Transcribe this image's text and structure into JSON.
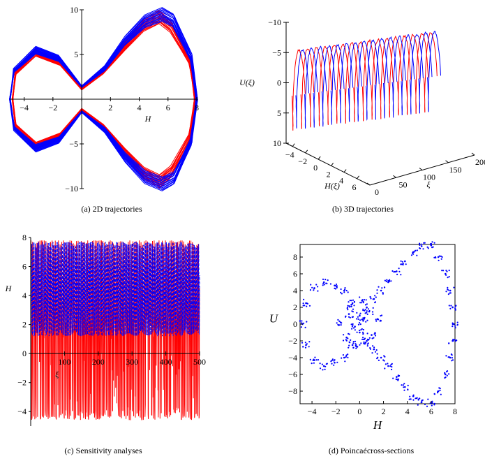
{
  "colors": {
    "series_a": "#ff0000",
    "series_b": "#0000ff",
    "axis": "#000000"
  },
  "chart_data": [
    {
      "id": "a",
      "type": "line",
      "caption": "(a)  2D trajectories",
      "xlabel": "H",
      "ylabel": "",
      "xlim": [
        -5,
        8
      ],
      "ylim": [
        -10,
        10
      ],
      "x_ticks": [
        -4,
        -2,
        0,
        2,
        4,
        6,
        8
      ],
      "x_tick_labels": [
        "−4",
        "−2",
        "",
        "2",
        "4",
        "6",
        "8"
      ],
      "y_ticks": [
        -10,
        -5,
        0,
        5,
        10
      ],
      "y_tick_labels": [
        "−10",
        "−5",
        "",
        "5",
        "10"
      ],
      "axes_style": "centered",
      "grid": false,
      "series": [
        {
          "color": "#ff0000",
          "values": [
            [
              7.9,
              0
            ],
            [
              7.5,
              4.5
            ],
            [
              6.2,
              8.5
            ],
            [
              5.4,
              9.6
            ],
            [
              4.3,
              8.6
            ],
            [
              3,
              6.2
            ],
            [
              1.5,
              3.2
            ],
            [
              0,
              1.2
            ],
            [
              -1.5,
              4.4
            ],
            [
              -3.2,
              5.6
            ],
            [
              -4.6,
              3.2
            ],
            [
              -4.8,
              0
            ],
            [
              -4.6,
              -3.2
            ],
            [
              -3.2,
              -5.6
            ],
            [
              -1.5,
              -4.4
            ],
            [
              0,
              -1.2
            ],
            [
              1.5,
              -3.2
            ],
            [
              3,
              -6.2
            ],
            [
              4.3,
              -8.6
            ],
            [
              5.4,
              -9.6
            ],
            [
              6.2,
              -8.5
            ],
            [
              7.5,
              -4.5
            ],
            [
              7.9,
              0
            ]
          ]
        },
        {
          "color": "#0000ff",
          "values": [
            [
              8,
              0
            ],
            [
              7.6,
              5
            ],
            [
              6.4,
              9.2
            ],
            [
              5.6,
              9.9
            ],
            [
              4.4,
              9.1
            ],
            [
              3,
              6.8
            ],
            [
              1.6,
              3.6
            ],
            [
              0,
              1.5
            ],
            [
              -1.6,
              4.9
            ],
            [
              -3.2,
              5.9
            ],
            [
              -4.7,
              3.5
            ],
            [
              -5,
              0
            ],
            [
              -4.7,
              -3.5
            ],
            [
              -3.2,
              -5.9
            ],
            [
              -1.6,
              -4.9
            ],
            [
              0,
              -1.5
            ],
            [
              1.6,
              -3.6
            ],
            [
              3,
              -6.8
            ],
            [
              4.4,
              -9.1
            ],
            [
              5.6,
              -9.9
            ],
            [
              6.4,
              -9.2
            ],
            [
              7.6,
              -5
            ],
            [
              8,
              0
            ]
          ]
        }
      ]
    },
    {
      "id": "b",
      "type": "line",
      "caption": "(b)  3D trajectories",
      "xlabel": "ξ",
      "ylabel": "H(ξ)",
      "zlabel": "U(ξ)",
      "xlim": [
        0,
        200
      ],
      "ylim": [
        -5,
        8
      ],
      "zlim": [
        -10,
        10
      ],
      "x_ticks": [
        0,
        50,
        100,
        150,
        200
      ],
      "y_ticks": [
        -4,
        -2,
        0,
        2,
        4,
        6
      ],
      "y_tick_labels": [
        "−4",
        "−2",
        "0",
        "2",
        "4",
        "6"
      ],
      "z_ticks": [
        -10,
        -5,
        0,
        5,
        10
      ],
      "z_tick_labels": [
        "−10",
        "−5",
        "0",
        "5",
        "10"
      ],
      "series": [
        {
          "color": "#ff0000",
          "values": [
            [
              0,
              -4,
              0
            ],
            [
              25,
              6,
              8
            ],
            [
              50,
              1,
              -4
            ],
            [
              75,
              -3,
              5
            ],
            [
              100,
              6,
              -9
            ],
            [
              125,
              0,
              3
            ],
            [
              150,
              -4,
              -4
            ],
            [
              175,
              6,
              8
            ],
            [
              200,
              1,
              -2
            ]
          ]
        },
        {
          "color": "#0000ff",
          "values": [
            [
              0,
              6,
              4
            ],
            [
              25,
              -3,
              -6
            ],
            [
              50,
              5,
              9
            ],
            [
              75,
              0,
              -3
            ],
            [
              100,
              -4,
              5
            ],
            [
              125,
              6,
              -8
            ],
            [
              150,
              1,
              2
            ],
            [
              175,
              -3,
              -6
            ],
            [
              200,
              6,
              9
            ]
          ]
        }
      ]
    },
    {
      "id": "c",
      "type": "line",
      "caption": "(c)  Sensitivity analyses",
      "xlabel": "ξ",
      "ylabel": "H",
      "xlim": [
        0,
        500
      ],
      "ylim": [
        -5,
        8
      ],
      "x_ticks": [
        100,
        200,
        300,
        400,
        500
      ],
      "x_tick_labels": [
        "100",
        "200",
        "300",
        "400",
        "500"
      ],
      "y_ticks": [
        -4,
        -2,
        0,
        2,
        4,
        6,
        8
      ],
      "y_tick_labels": [
        "−4",
        "−2",
        "0",
        "2",
        "4",
        "6",
        "8"
      ],
      "series": [
        {
          "color": "#ff0000",
          "range": [
            -4.7,
            7.9
          ],
          "approx_period": 4.6
        },
        {
          "color": "#0000ff",
          "range": [
            1.2,
            7.7
          ],
          "approx_period": 3.4
        }
      ]
    },
    {
      "id": "d",
      "type": "scatter",
      "caption": "(d)  Poincaécross-sections",
      "xlabel": "H",
      "ylabel": "U",
      "xlim": [
        -5,
        8
      ],
      "ylim": [
        -9.5,
        9.5
      ],
      "x_ticks": [
        -4,
        -2,
        0,
        2,
        4,
        6,
        8
      ],
      "x_tick_labels": [
        "−4",
        "−2",
        "0",
        "2",
        "4",
        "6",
        "8"
      ],
      "y_ticks": [
        -8,
        -6,
        -4,
        -2,
        0,
        2,
        4,
        6,
        8
      ],
      "y_tick_labels": [
        "−8",
        "−6",
        "−4",
        "−2",
        "0",
        "2",
        "4",
        "6",
        "8"
      ],
      "marker_color": "#0000ff",
      "points": [
        [
          7.9,
          0
        ],
        [
          7.8,
          2
        ],
        [
          7.6,
          4
        ],
        [
          7.2,
          6
        ],
        [
          6.6,
          8
        ],
        [
          6,
          9.4
        ],
        [
          5.2,
          9.3
        ],
        [
          4.5,
          8.6
        ],
        [
          3.8,
          7.5
        ],
        [
          3.1,
          6.3
        ],
        [
          2.4,
          5
        ],
        [
          1.8,
          4
        ],
        [
          1.2,
          3
        ],
        [
          0.6,
          2
        ],
        [
          0,
          1
        ],
        [
          -0.6,
          2.5
        ],
        [
          -1.3,
          4
        ],
        [
          -2.1,
          4.6
        ],
        [
          -3,
          5
        ],
        [
          -3.8,
          4.3
        ],
        [
          -4.5,
          2.5
        ],
        [
          -4.8,
          0
        ],
        [
          -4.5,
          -2.5
        ],
        [
          -3.8,
          -4.3
        ],
        [
          -3,
          -5
        ],
        [
          -2.1,
          -4.6
        ],
        [
          -1.3,
          -4
        ],
        [
          -0.6,
          -2.5
        ],
        [
          0,
          -1
        ],
        [
          0.6,
          -2
        ],
        [
          1.2,
          -3
        ],
        [
          1.8,
          -4
        ],
        [
          2.4,
          -5
        ],
        [
          3.1,
          -6.3
        ],
        [
          3.8,
          -7.5
        ],
        [
          4.5,
          -8.6
        ],
        [
          5.2,
          -9.3
        ],
        [
          6,
          -9.4
        ],
        [
          6.6,
          -8
        ],
        [
          7.2,
          -6
        ],
        [
          7.6,
          -4
        ],
        [
          7.8,
          -2
        ],
        [
          0.3,
          0.4
        ],
        [
          -0.4,
          -0.3
        ],
        [
          0.8,
          1.5
        ],
        [
          -0.9,
          1.2
        ],
        [
          1,
          -1.3
        ],
        [
          -1.1,
          -1.6
        ],
        [
          0.2,
          2.8
        ],
        [
          -0.2,
          -2.7
        ],
        [
          1.5,
          0.6
        ],
        [
          -1.6,
          0.2
        ],
        [
          0.5,
          -2.2
        ],
        [
          -0.7,
          2.1
        ]
      ]
    }
  ]
}
